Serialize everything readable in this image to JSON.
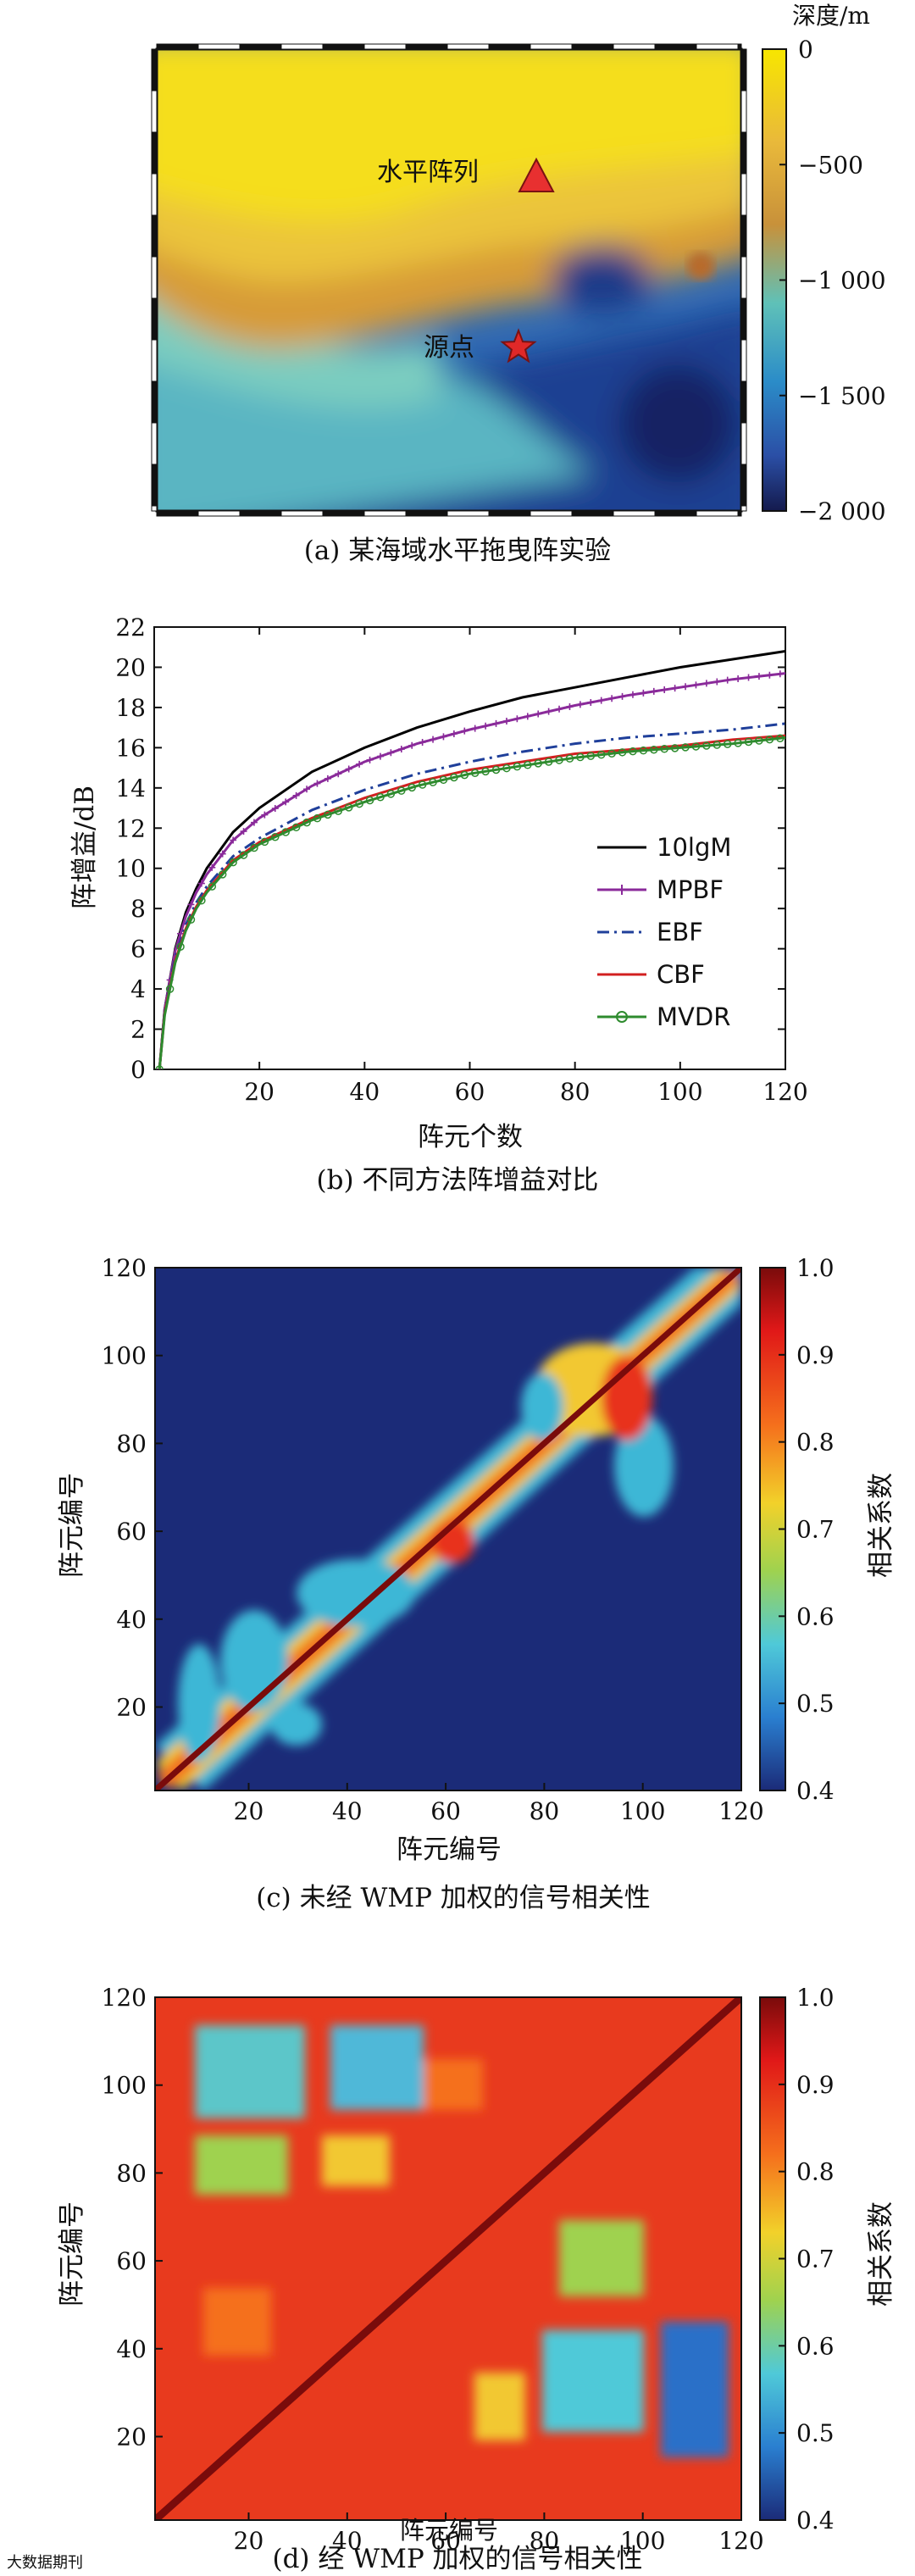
{
  "watermark": "大数据期刊",
  "panels": {
    "a": {
      "caption": "(a) 某海域水平拖曳阵实验",
      "colorbar_title": "深度/m",
      "colorbar_ticks": [
        "0",
        "−500",
        "−1 000",
        "−1 500",
        "−2 000"
      ],
      "label_array": "水平阵列",
      "label_source": "源点",
      "colors": {
        "shallow": "#f0d000",
        "mid": "#d8922a",
        "deep": "#1a2f7a",
        "array_marker": "#e83030",
        "source_marker": "#e02828"
      }
    },
    "b": {
      "caption": "(b) 不同方法阵增益对比",
      "ylabel": "阵增益/dB",
      "xlabel": "阵元个数",
      "legend": [
        "10lgM",
        "MPBF",
        "EBF",
        "CBF",
        "MVDR"
      ]
    },
    "c": {
      "caption": "(c) 未经 WMP 加权的信号相关性",
      "xlabel": "阵元编号",
      "ylabel": "阵元编号",
      "colorbar_label": "相关系数",
      "colorbar_ticks": [
        "1.0",
        "0.9",
        "0.8",
        "0.7",
        "0.6",
        "0.5",
        "0.4"
      ]
    },
    "d": {
      "caption": "(d) 经 WMP 加权的信号相关性",
      "xlabel": "阵元编号",
      "ylabel": "阵元编号",
      "colorbar_label": "相关系数",
      "colorbar_ticks": [
        "1.0",
        "0.9",
        "0.8",
        "0.7",
        "0.6",
        "0.5",
        "0.4"
      ]
    }
  },
  "chart_data": [
    {
      "type": "line",
      "title": "不同方法阵增益对比",
      "xlabel": "阵元个数",
      "ylabel": "阵增益/dB",
      "xlim": [
        0,
        120
      ],
      "ylim": [
        0,
        22
      ],
      "xticks": [
        20,
        40,
        60,
        80,
        100,
        120
      ],
      "yticks": [
        0,
        2,
        4,
        6,
        8,
        10,
        12,
        14,
        16,
        18,
        20,
        22
      ],
      "legend_position": "lower-right",
      "x": [
        1,
        2,
        4,
        6,
        8,
        10,
        15,
        20,
        30,
        40,
        50,
        60,
        70,
        80,
        90,
        100,
        110,
        120
      ],
      "series": [
        {
          "name": "10lgM",
          "color": "#000000",
          "style": "solid",
          "values": [
            0,
            3.0,
            6.0,
            7.8,
            9.0,
            10.0,
            11.8,
            13.0,
            14.8,
            16.0,
            17.0,
            17.8,
            18.5,
            19.0,
            19.5,
            20.0,
            20.4,
            20.8
          ]
        },
        {
          "name": "MPBF",
          "color": "#8a2a9a",
          "style": "plus",
          "values": [
            0,
            3.0,
            5.9,
            7.6,
            8.8,
            9.7,
            11.4,
            12.5,
            14.1,
            15.3,
            16.2,
            16.9,
            17.5,
            18.1,
            18.6,
            19.0,
            19.4,
            19.7
          ]
        },
        {
          "name": "EBF",
          "color": "#1f3f9a",
          "style": "dashdot",
          "values": [
            0,
            2.9,
            5.6,
            7.2,
            8.3,
            9.1,
            10.6,
            11.5,
            12.9,
            13.9,
            14.7,
            15.3,
            15.8,
            16.2,
            16.5,
            16.7,
            16.9,
            17.2
          ]
        },
        {
          "name": "CBF",
          "color": "#d22020",
          "style": "solid",
          "values": [
            0,
            2.8,
            5.4,
            7.0,
            8.1,
            8.9,
            10.4,
            11.3,
            12.5,
            13.5,
            14.3,
            14.9,
            15.3,
            15.7,
            15.9,
            16.1,
            16.4,
            16.6
          ]
        },
        {
          "name": "MVDR",
          "color": "#2e8b2e",
          "style": "circle",
          "values": [
            0,
            2.7,
            5.3,
            6.9,
            8.0,
            8.8,
            10.3,
            11.2,
            12.4,
            13.3,
            14.1,
            14.7,
            15.1,
            15.5,
            15.8,
            16.0,
            16.2,
            16.5
          ]
        }
      ]
    },
    {
      "type": "heatmap",
      "title": "未经 WMP 加权的信号相关性",
      "xlabel": "阵元编号",
      "ylabel": "阵元编号",
      "x_range": [
        1,
        120
      ],
      "y_range": [
        1,
        120
      ],
      "xticks": [
        20,
        40,
        60,
        80,
        100,
        120
      ],
      "yticks": [
        20,
        40,
        60,
        80,
        100,
        120
      ],
      "color_range": [
        0.4,
        1.0
      ],
      "colorbar_ticks": [
        1.0,
        0.9,
        0.8,
        0.7,
        0.6,
        0.5,
        0.4
      ],
      "diagonal_value": 1.0,
      "background_value": 0.42,
      "band_halfwidth_elements": 12
    },
    {
      "type": "heatmap",
      "title": "经 WMP 加权的信号相关性",
      "xlabel": "阵元编号",
      "ylabel": "阵元编号",
      "x_range": [
        1,
        120
      ],
      "y_range": [
        1,
        120
      ],
      "xticks": [
        20,
        40,
        60,
        80,
        100,
        120
      ],
      "yticks": [
        20,
        40,
        60,
        80,
        100,
        120
      ],
      "color_range": [
        0.4,
        1.0
      ],
      "colorbar_ticks": [
        1.0,
        0.9,
        0.8,
        0.7,
        0.6,
        0.5,
        0.4
      ],
      "diagonal_value": 1.0,
      "background_value": 0.88,
      "low_blocks": [
        [
          10,
          30,
          95,
          115
        ],
        [
          40,
          60,
          95,
          115
        ],
        [
          85,
          110,
          10,
          40
        ]
      ]
    }
  ]
}
